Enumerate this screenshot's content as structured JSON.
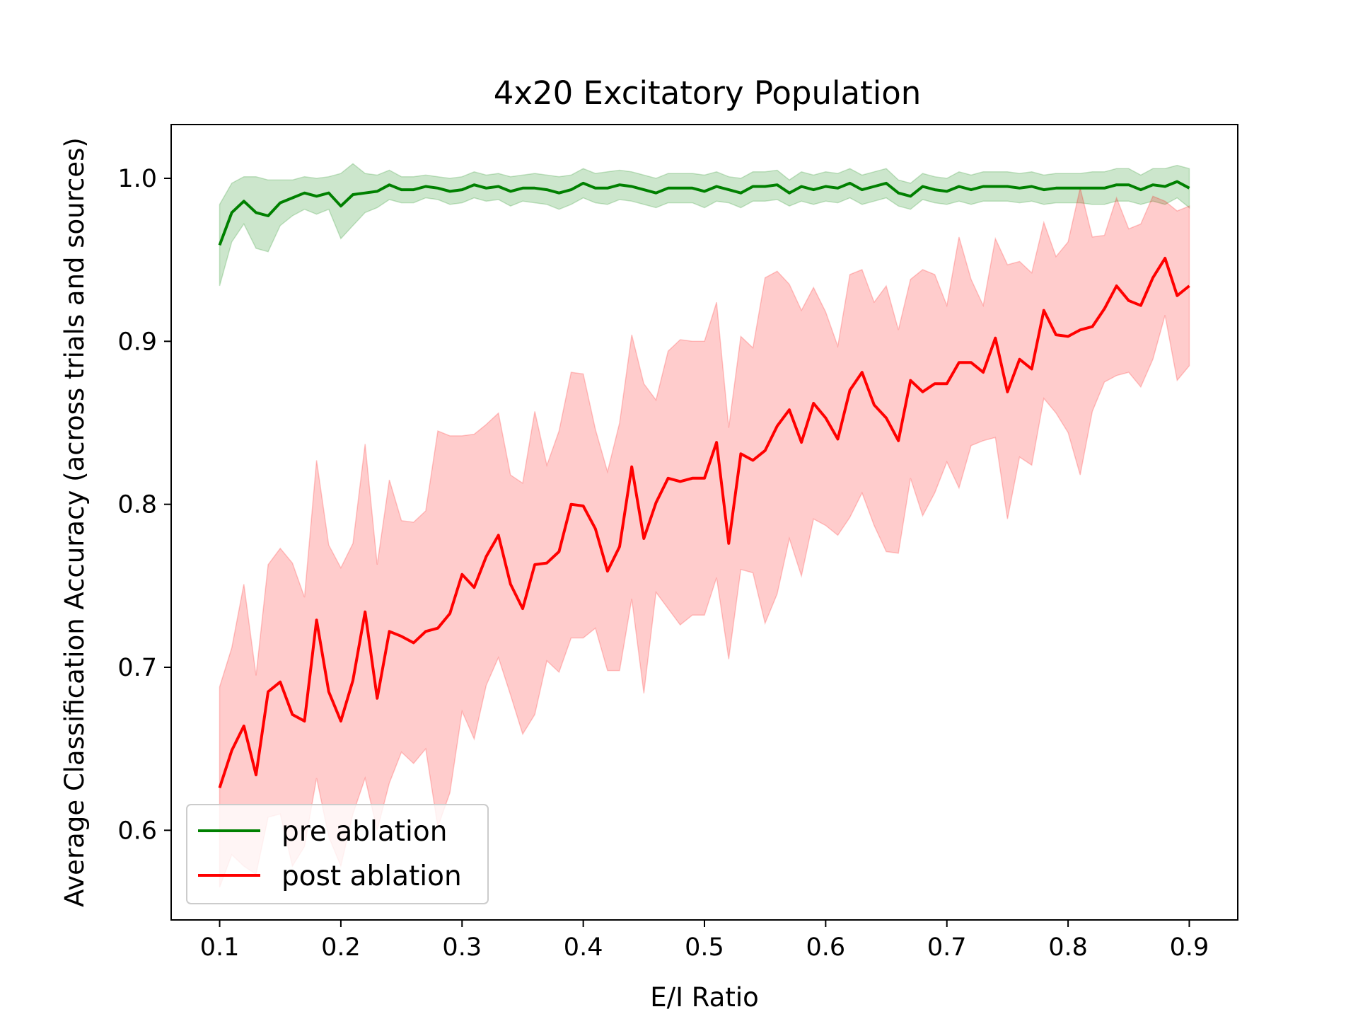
{
  "chart_data": {
    "type": "line",
    "title": "4x20 Excitatory Population",
    "xlabel": "E/I Ratio",
    "ylabel": "Average Classification Accuracy (across trials and sources)",
    "xlim": [
      0.06,
      0.94
    ],
    "ylim": [
      0.545,
      1.033
    ],
    "xticks": [
      0.1,
      0.2,
      0.3,
      0.4,
      0.5,
      0.6,
      0.7,
      0.8,
      0.9
    ],
    "xtick_labels": [
      "0.1",
      "0.2",
      "0.3",
      "0.4",
      "0.5",
      "0.6",
      "0.7",
      "0.8",
      "0.9"
    ],
    "yticks": [
      0.6,
      0.7,
      0.8,
      0.9,
      1.0
    ],
    "ytick_labels": [
      "0.6",
      "0.7",
      "0.8",
      "0.9",
      "1.0"
    ],
    "legend_position": "lower-left",
    "x": [
      0.1,
      0.11,
      0.12,
      0.13,
      0.14,
      0.15,
      0.16,
      0.17,
      0.18,
      0.19,
      0.2,
      0.21,
      0.22,
      0.23,
      0.24,
      0.25,
      0.26,
      0.27,
      0.28,
      0.29,
      0.3,
      0.31,
      0.32,
      0.33,
      0.34,
      0.35,
      0.36,
      0.37,
      0.38,
      0.39,
      0.4,
      0.41,
      0.42,
      0.43,
      0.44,
      0.45,
      0.46,
      0.47,
      0.48,
      0.49,
      0.5,
      0.51,
      0.52,
      0.53,
      0.54,
      0.55,
      0.56,
      0.57,
      0.58,
      0.59,
      0.6,
      0.61,
      0.62,
      0.63,
      0.64,
      0.65,
      0.66,
      0.67,
      0.68,
      0.69,
      0.7,
      0.71,
      0.72,
      0.73,
      0.74,
      0.75,
      0.76,
      0.77,
      0.78,
      0.79,
      0.8,
      0.81,
      0.82,
      0.83,
      0.84,
      0.85,
      0.86,
      0.87,
      0.88,
      0.89,
      0.9
    ],
    "series": [
      {
        "name": "pre ablation",
        "color": "#008000",
        "band_color": "#008000",
        "values": [
          0.959,
          0.979,
          0.986,
          0.979,
          0.977,
          0.985,
          0.988,
          0.991,
          0.989,
          0.991,
          0.983,
          0.99,
          0.991,
          0.992,
          0.996,
          0.993,
          0.993,
          0.995,
          0.994,
          0.992,
          0.993,
          0.996,
          0.994,
          0.995,
          0.992,
          0.994,
          0.994,
          0.993,
          0.991,
          0.993,
          0.997,
          0.994,
          0.994,
          0.996,
          0.995,
          0.993,
          0.991,
          0.994,
          0.994,
          0.994,
          0.992,
          0.995,
          0.993,
          0.991,
          0.995,
          0.995,
          0.996,
          0.991,
          0.995,
          0.993,
          0.995,
          0.994,
          0.997,
          0.993,
          0.995,
          0.997,
          0.991,
          0.989,
          0.995,
          0.993,
          0.992,
          0.995,
          0.993,
          0.995,
          0.995,
          0.995,
          0.994,
          0.995,
          0.993,
          0.994,
          0.994,
          0.994,
          0.994,
          0.994,
          0.996,
          0.996,
          0.993,
          0.996,
          0.995,
          0.998,
          0.994
        ],
        "lower": [
          0.934,
          0.961,
          0.972,
          0.957,
          0.955,
          0.971,
          0.977,
          0.981,
          0.978,
          0.981,
          0.963,
          0.971,
          0.979,
          0.982,
          0.987,
          0.985,
          0.985,
          0.988,
          0.987,
          0.984,
          0.985,
          0.988,
          0.986,
          0.987,
          0.983,
          0.986,
          0.985,
          0.984,
          0.981,
          0.984,
          0.988,
          0.985,
          0.984,
          0.987,
          0.986,
          0.984,
          0.982,
          0.985,
          0.985,
          0.985,
          0.982,
          0.986,
          0.985,
          0.982,
          0.986,
          0.986,
          0.987,
          0.983,
          0.986,
          0.984,
          0.986,
          0.985,
          0.988,
          0.984,
          0.986,
          0.988,
          0.983,
          0.981,
          0.987,
          0.985,
          0.984,
          0.986,
          0.984,
          0.986,
          0.986,
          0.986,
          0.985,
          0.986,
          0.984,
          0.985,
          0.985,
          0.985,
          0.984,
          0.984,
          0.986,
          0.986,
          0.984,
          0.986,
          0.984,
          0.988,
          0.982
        ],
        "upper": [
          0.984,
          0.997,
          1.001,
          1.001,
          0.999,
          0.999,
          0.999,
          1.001,
          1.0,
          1.001,
          1.003,
          1.009,
          1.003,
          1.002,
          1.005,
          1.001,
          1.001,
          1.002,
          1.001,
          1.0,
          1.001,
          1.004,
          1.002,
          1.003,
          1.001,
          1.002,
          1.003,
          1.002,
          1.001,
          1.002,
          1.006,
          1.003,
          1.004,
          1.005,
          1.004,
          1.002,
          1.0,
          1.003,
          1.003,
          1.003,
          1.002,
          1.004,
          1.001,
          1.0,
          1.004,
          1.004,
          1.005,
          0.999,
          1.004,
          1.002,
          1.004,
          1.003,
          1.006,
          1.002,
          1.004,
          1.006,
          0.999,
          0.997,
          1.003,
          1.001,
          1.0,
          1.004,
          1.002,
          1.004,
          1.004,
          1.004,
          1.003,
          1.004,
          1.002,
          1.003,
          1.003,
          1.003,
          1.004,
          1.004,
          1.006,
          1.006,
          1.002,
          1.006,
          1.006,
          1.008,
          1.006
        ]
      },
      {
        "name": "post ablation",
        "color": "#ff0000",
        "band_color": "#ff0000",
        "values": [
          0.626,
          0.649,
          0.664,
          0.634,
          0.685,
          0.691,
          0.671,
          0.667,
          0.729,
          0.685,
          0.667,
          0.692,
          0.734,
          0.681,
          0.722,
          0.719,
          0.715,
          0.722,
          0.724,
          0.733,
          0.757,
          0.749,
          0.768,
          0.781,
          0.751,
          0.736,
          0.763,
          0.764,
          0.771,
          0.8,
          0.799,
          0.785,
          0.759,
          0.774,
          0.823,
          0.779,
          0.801,
          0.816,
          0.814,
          0.816,
          0.816,
          0.838,
          0.776,
          0.831,
          0.827,
          0.833,
          0.848,
          0.858,
          0.838,
          0.862,
          0.853,
          0.84,
          0.87,
          0.881,
          0.861,
          0.853,
          0.839,
          0.876,
          0.869,
          0.874,
          0.874,
          0.887,
          0.887,
          0.881,
          0.902,
          0.869,
          0.889,
          0.883,
          0.919,
          0.904,
          0.903,
          0.907,
          0.909,
          0.92,
          0.934,
          0.925,
          0.922,
          0.939,
          0.951,
          0.928,
          0.934
        ],
        "lower": [
          0.565,
          0.585,
          0.578,
          0.573,
          0.608,
          0.61,
          0.578,
          0.59,
          0.632,
          0.596,
          0.578,
          0.61,
          0.632,
          0.6,
          0.629,
          0.648,
          0.641,
          0.65,
          0.602,
          0.623,
          0.673,
          0.656,
          0.689,
          0.706,
          0.683,
          0.659,
          0.671,
          0.704,
          0.697,
          0.718,
          0.718,
          0.724,
          0.698,
          0.698,
          0.742,
          0.684,
          0.746,
          0.736,
          0.726,
          0.732,
          0.732,
          0.755,
          0.705,
          0.76,
          0.758,
          0.727,
          0.745,
          0.779,
          0.756,
          0.791,
          0.787,
          0.781,
          0.792,
          0.807,
          0.787,
          0.771,
          0.77,
          0.816,
          0.793,
          0.807,
          0.826,
          0.81,
          0.836,
          0.839,
          0.841,
          0.791,
          0.829,
          0.824,
          0.865,
          0.856,
          0.844,
          0.818,
          0.857,
          0.875,
          0.879,
          0.881,
          0.872,
          0.889,
          0.916,
          0.876,
          0.885
        ],
        "upper": [
          0.688,
          0.712,
          0.751,
          0.695,
          0.763,
          0.773,
          0.764,
          0.743,
          0.827,
          0.775,
          0.761,
          0.776,
          0.837,
          0.763,
          0.815,
          0.79,
          0.789,
          0.796,
          0.845,
          0.842,
          0.842,
          0.843,
          0.849,
          0.856,
          0.818,
          0.813,
          0.857,
          0.824,
          0.845,
          0.881,
          0.88,
          0.846,
          0.82,
          0.85,
          0.904,
          0.874,
          0.864,
          0.894,
          0.901,
          0.9,
          0.9,
          0.924,
          0.847,
          0.903,
          0.896,
          0.939,
          0.943,
          0.935,
          0.919,
          0.933,
          0.918,
          0.897,
          0.941,
          0.944,
          0.924,
          0.934,
          0.907,
          0.938,
          0.944,
          0.941,
          0.922,
          0.964,
          0.938,
          0.922,
          0.963,
          0.947,
          0.949,
          0.942,
          0.973,
          0.952,
          0.961,
          0.994,
          0.964,
          0.965,
          0.988,
          0.969,
          0.972,
          0.989,
          0.986,
          0.98,
          0.983
        ]
      }
    ]
  }
}
